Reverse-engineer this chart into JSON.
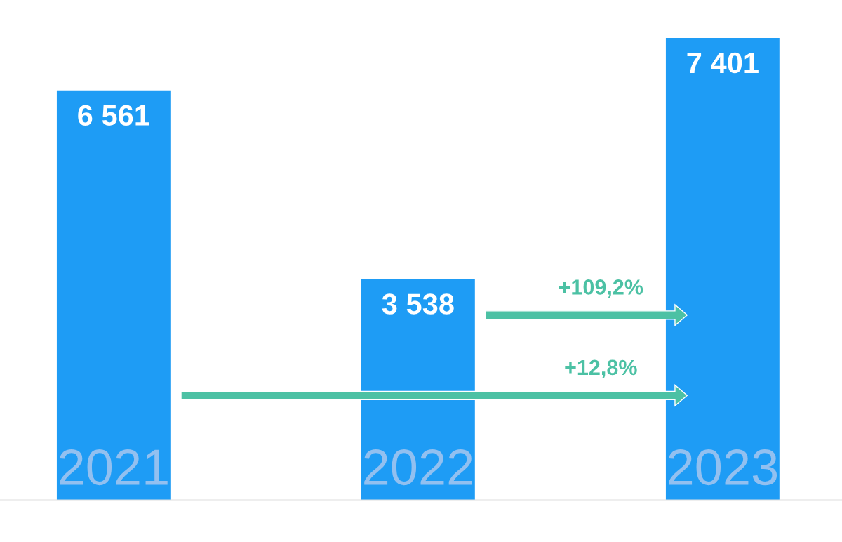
{
  "chart_data": {
    "type": "bar",
    "categories": [
      "2021",
      "2022",
      "2023"
    ],
    "values": [
      6561,
      3538,
      7401
    ],
    "value_labels": [
      "6 561",
      "3 538",
      "7 401"
    ],
    "color": "#1e9cf5",
    "annotations": [
      "+109,2%",
      "+12,8%"
    ]
  }
}
